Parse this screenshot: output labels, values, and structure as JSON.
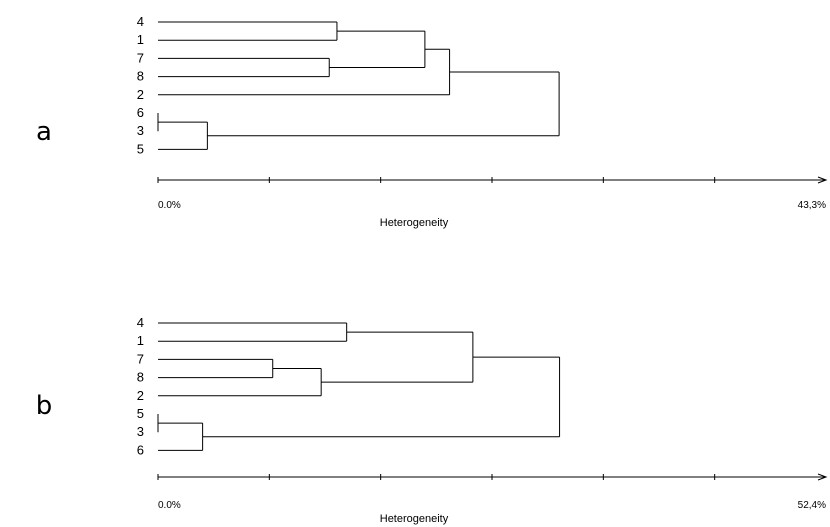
{
  "panels": [
    {
      "letter": "a",
      "leaves": [
        "4",
        "1",
        "7",
        "8",
        "2",
        "6",
        "3",
        "5"
      ],
      "axis": {
        "title": "Heterogeneity",
        "min_label": "0.0%",
        "max_label": "43,3%",
        "min": 0.0,
        "max": 43.3,
        "ticks": 6
      },
      "merges": [
        {
          "a": "6",
          "b": "3",
          "height": 0.0
        },
        {
          "a": "6+3",
          "b": "5",
          "height": 3.2
        },
        {
          "a": "4",
          "b": "1",
          "height": 11.6
        },
        {
          "a": "7",
          "b": "8",
          "height": 11.1
        },
        {
          "a": "4+1",
          "b": "7+8",
          "height": 17.3
        },
        {
          "a": "4+1+7+8",
          "b": "2",
          "height": 18.9
        },
        {
          "a": "4+1+7+8+2",
          "b": "6+3+5",
          "height": 26.0
        }
      ]
    },
    {
      "letter": "b",
      "leaves": [
        "4",
        "1",
        "7",
        "8",
        "2",
        "5",
        "3",
        "6"
      ],
      "axis": {
        "title": "Heterogeneity",
        "min_label": "0.0%",
        "max_label": "52,4%",
        "min": 0.0,
        "max": 52.4,
        "ticks": 6
      },
      "merges": [
        {
          "a": "5",
          "b": "3",
          "height": 0.0
        },
        {
          "a": "5+3",
          "b": "6",
          "height": 3.5
        },
        {
          "a": "7",
          "b": "8",
          "height": 9.0
        },
        {
          "a": "7+8",
          "b": "2",
          "height": 12.8
        },
        {
          "a": "4",
          "b": "1",
          "height": 14.8
        },
        {
          "a": "4+1",
          "b": "7+8+2",
          "height": 24.7
        },
        {
          "a": "4+1+7+8+2",
          "b": "5+3+6",
          "height": 31.5
        }
      ]
    }
  ]
}
